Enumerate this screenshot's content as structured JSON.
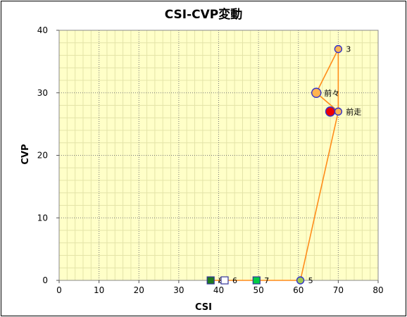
{
  "chart_data": {
    "type": "scatter",
    "title": "CSI-CVP変動",
    "xlabel": "CSI",
    "ylabel": "CVP",
    "xlim": [
      0,
      80
    ],
    "ylim": [
      0,
      40
    ],
    "x_ticks": [
      0,
      10,
      20,
      30,
      40,
      50,
      60,
      70,
      80
    ],
    "y_ticks": [
      0,
      10,
      20,
      30,
      40
    ],
    "grid": true,
    "colors": {
      "plot_bg": "#ffffc8",
      "line": "#ff8c1a",
      "circle_fill": "#ffb450",
      "circle_stroke": "#3333cc",
      "highlight_fill": "#ee0000",
      "square_fill": "#00cc44",
      "square_dark": "#1e7a1e",
      "square_outline": "#333399",
      "open_square_fill": "#ffffff",
      "green_circle_fill": "#a0cc50"
    },
    "line_path": [
      {
        "x": 70,
        "y": 27
      },
      {
        "x": 64.5,
        "y": 30
      },
      {
        "x": 70,
        "y": 37
      },
      {
        "x": 70,
        "y": 27
      },
      {
        "x": 60.5,
        "y": 0
      },
      {
        "x": 38,
        "y": 0
      }
    ],
    "points": [
      {
        "label": "3",
        "x": 70,
        "y": 37,
        "shape": "circle",
        "fill": "circle_fill"
      },
      {
        "label": "前々",
        "x": 64.5,
        "y": 30,
        "shape": "circle_large",
        "fill": "circle_fill"
      },
      {
        "label": "前走",
        "x": 70,
        "y": 27,
        "shape": "circle",
        "fill": "circle_fill"
      },
      {
        "label": "",
        "x": 68,
        "y": 27,
        "shape": "circle_large",
        "fill": "highlight_fill"
      },
      {
        "label": "5",
        "x": 60.5,
        "y": 0,
        "shape": "circle",
        "fill": "green_circle_fill"
      },
      {
        "label": "8",
        "x": 38,
        "y": 0,
        "shape": "square",
        "fill": "square_dark"
      },
      {
        "label": "6",
        "x": 41.5,
        "y": 0,
        "shape": "square",
        "fill": "open_square_fill"
      },
      {
        "label": "7",
        "x": 49.5,
        "y": 0,
        "shape": "square",
        "fill": "square_fill"
      }
    ]
  }
}
